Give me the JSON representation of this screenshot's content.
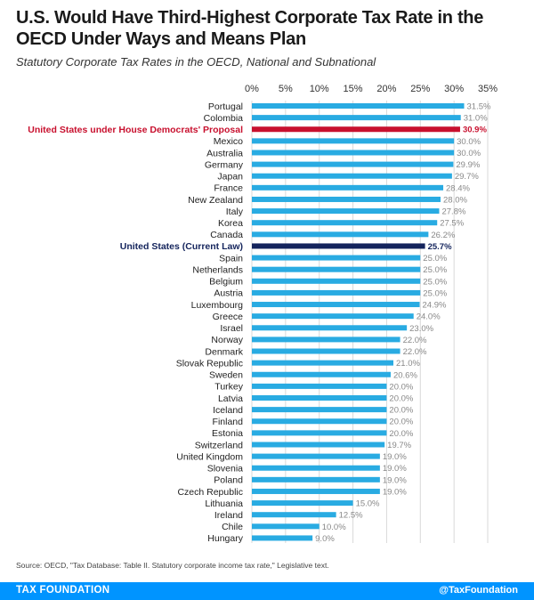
{
  "header": {
    "title": "U.S. Would Have Third-Highest Corporate Tax Rate in the OECD Under Ways and Means Plan",
    "subtitle": "Statutory Corporate Tax Rates in the OECD, National and Subnational"
  },
  "colors": {
    "bar": "#29abe2",
    "highlight_proposal": "#c8102e",
    "highlight_current": "#14245c",
    "grid": "#d9d9d9",
    "footer": "#0094ff"
  },
  "chart_data": {
    "type": "bar",
    "orientation": "horizontal",
    "title": "U.S. Would Have Third-Highest Corporate Tax Rate in the OECD Under Ways and Means Plan",
    "subtitle": "Statutory Corporate Tax Rates in the OECD, National and Subnational",
    "xlabel": "",
    "ylabel": "",
    "xlim": [
      0,
      35
    ],
    "ticks": [
      0,
      5,
      10,
      15,
      20,
      25,
      30,
      35
    ],
    "tick_labels": [
      "0%",
      "5%",
      "10%",
      "15%",
      "20%",
      "25%",
      "30%",
      "35%"
    ],
    "grid": true,
    "categories": [
      "Portugal",
      "Colombia",
      "United States under House Democrats' Proposal",
      "Mexico",
      "Australia",
      "Germany",
      "Japan",
      "France",
      "New Zealand",
      "Italy",
      "Korea",
      "Canada",
      "United States (Current Law)",
      "Spain",
      "Netherlands",
      "Belgium",
      "Austria",
      "Luxembourg",
      "Greece",
      "Israel",
      "Norway",
      "Denmark",
      "Slovak Republic",
      "Sweden",
      "Turkey",
      "Latvia",
      "Iceland",
      "Finland",
      "Estonia",
      "Switzerland",
      "United Kingdom",
      "Slovenia",
      "Poland",
      "Czech Republic",
      "Lithuania",
      "Ireland",
      "Chile",
      "Hungary"
    ],
    "values": [
      31.5,
      31.0,
      30.9,
      30.0,
      30.0,
      29.9,
      29.7,
      28.4,
      28.0,
      27.8,
      27.5,
      26.2,
      25.7,
      25.0,
      25.0,
      25.0,
      25.0,
      24.9,
      24.0,
      23.0,
      22.0,
      22.0,
      21.0,
      20.6,
      20.0,
      20.0,
      20.0,
      20.0,
      20.0,
      19.7,
      19.0,
      19.0,
      19.0,
      19.0,
      15.0,
      12.5,
      10.0,
      9.0
    ],
    "value_labels": [
      "31.5%",
      "31.0%",
      "30.9%",
      "30.0%",
      "30.0%",
      "29.9%",
      "29.7%",
      "28.4%",
      "28.0%",
      "27.8%",
      "27.5%",
      "26.2%",
      "25.7%",
      "25.0%",
      "25.0%",
      "25.0%",
      "25.0%",
      "24.9%",
      "24.0%",
      "23.0%",
      "22.0%",
      "22.0%",
      "21.0%",
      "20.6%",
      "20.0%",
      "20.0%",
      "20.0%",
      "20.0%",
      "20.0%",
      "19.7%",
      "19.0%",
      "19.0%",
      "19.0%",
      "19.0%",
      "15.0%",
      "12.5%",
      "10.0%",
      "9.0%"
    ],
    "highlights": {
      "United States under House Democrats' Proposal": "proposal",
      "United States (Current Law)": "current"
    }
  },
  "footer": {
    "source": "Source: OECD, \"Tax Database: Table II. Statutory corporate income tax rate,\" Legislative text.",
    "brand": "TAX FOUNDATION",
    "handle": "@TaxFoundation"
  }
}
